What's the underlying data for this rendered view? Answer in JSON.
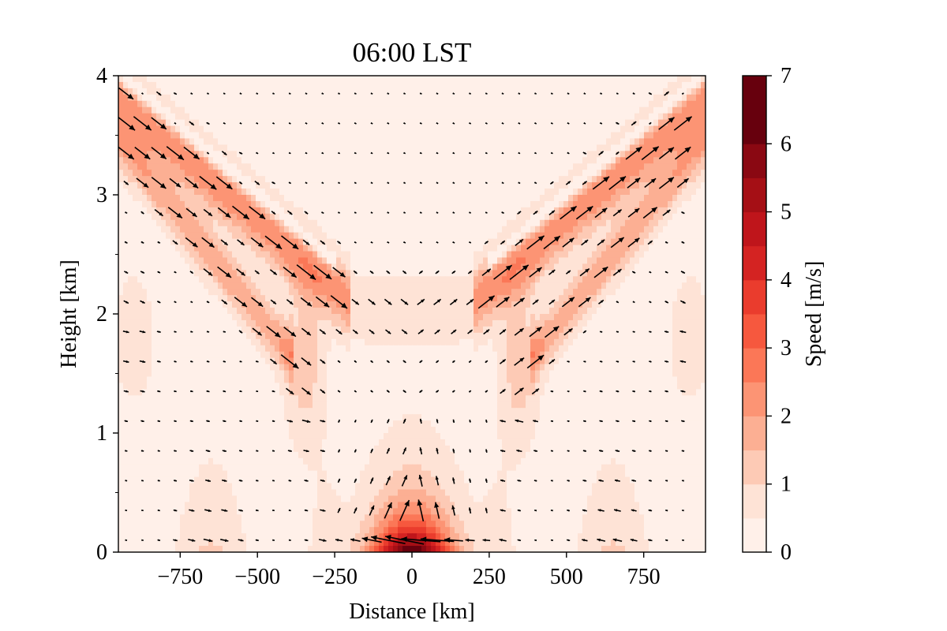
{
  "chart_data": {
    "type": "heatmap",
    "title": "06:00 LST",
    "xlabel": "Distance [km]",
    "ylabel": "Height [km]",
    "xlim": [
      -950,
      950
    ],
    "ylim": [
      0,
      4
    ],
    "x_ticks": [
      -750,
      -500,
      -250,
      0,
      250,
      500,
      750
    ],
    "x_tick_labels": [
      "−750",
      "−500",
      "−250",
      "0",
      "250",
      "500",
      "750"
    ],
    "y_ticks": [
      0,
      1,
      2,
      3,
      4
    ],
    "y_tick_labels": [
      "0",
      "1",
      "2",
      "3",
      "4"
    ],
    "grid": false,
    "colormap": "Reds",
    "colorbar": {
      "label": "Speed  [m/s]",
      "range": [
        0,
        7
      ],
      "levels": [
        0,
        0.5,
        1,
        1.5,
        2,
        2.5,
        3,
        3.5,
        4,
        4.5,
        5,
        5.5,
        6,
        6.5,
        7
      ],
      "ticks": [
        0,
        1,
        2,
        3,
        4,
        5,
        6,
        7
      ],
      "tick_labels": [
        "0",
        "1",
        "2",
        "3",
        "4",
        "5",
        "6",
        "7"
      ],
      "colors": [
        "#fff0e9",
        "#fee3d6",
        "#fdcab5",
        "#fcaf93",
        "#fc9474",
        "#fb7757",
        "#f6583e",
        "#ea3c2d",
        "#d42322",
        "#bf151b",
        "#a50f15",
        "#8a0812",
        "#67000d",
        "#67000d"
      ]
    },
    "field_description": "Speed shaded by contour levels; arrows show wind vectors",
    "features": [
      {
        "name": "sea-breeze jet",
        "x": 0,
        "y": 0.1,
        "max_speed": 5.0
      },
      {
        "name": "left wave beam",
        "from": [
          -950,
          3.8
        ],
        "to": [
          -220,
          2.1
        ],
        "speed": 2.0
      },
      {
        "name": "right wave beam",
        "from": [
          220,
          2.1
        ],
        "to": [
          950,
          3.8
        ],
        "speed": 2.0
      },
      {
        "name": "left secondary beam",
        "from": [
          -950,
          3.4
        ],
        "to": [
          -420,
          1.6
        ],
        "speed": 1.7
      },
      {
        "name": "right secondary beam",
        "from": [
          420,
          1.6
        ],
        "to": [
          950,
          3.4
        ],
        "speed": 1.7
      }
    ]
  }
}
